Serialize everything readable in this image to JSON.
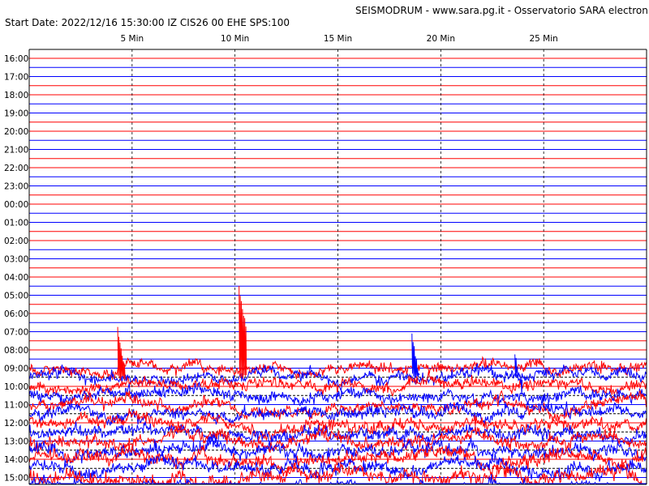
{
  "chart_data": {
    "type": "line",
    "title": "SEISMODRUM - www.sara.pg.it - Osservatorio SARA electronic",
    "subtitle": "Start Date: 2022/12/16 15:30:00 IZ CIS26 00 EHE  SPS:100",
    "x_ticks": [
      "5 Min",
      "10 Min",
      "15 Min",
      "20 Min",
      "25 Min"
    ],
    "x_tick_minutes": [
      5,
      10,
      15,
      20,
      25
    ],
    "xlim_minutes": [
      0,
      30
    ],
    "row_labels": [
      "16:00",
      "17:00",
      "18:00",
      "19:00",
      "20:00",
      "21:00",
      "22:00",
      "23:00",
      "00:00",
      "01:00",
      "02:00",
      "03:00",
      "04:00",
      "05:00",
      "06:00",
      "07:00",
      "08:00",
      "09:00",
      "10:00",
      "11:00",
      "12:00",
      "13:00",
      "14:00",
      "15:00"
    ],
    "grid": {
      "vertical": "dashed",
      "horizontal": "solid"
    },
    "colors": {
      "trace_red": "#ff0000",
      "trace_blue": "#0000ff",
      "axis": "#000000",
      "guide_black": "#000000"
    },
    "active_traces_hours": [
      "09:00",
      "10:00",
      "11:00",
      "12:00",
      "13:00",
      "14:00",
      "15:00"
    ]
  }
}
